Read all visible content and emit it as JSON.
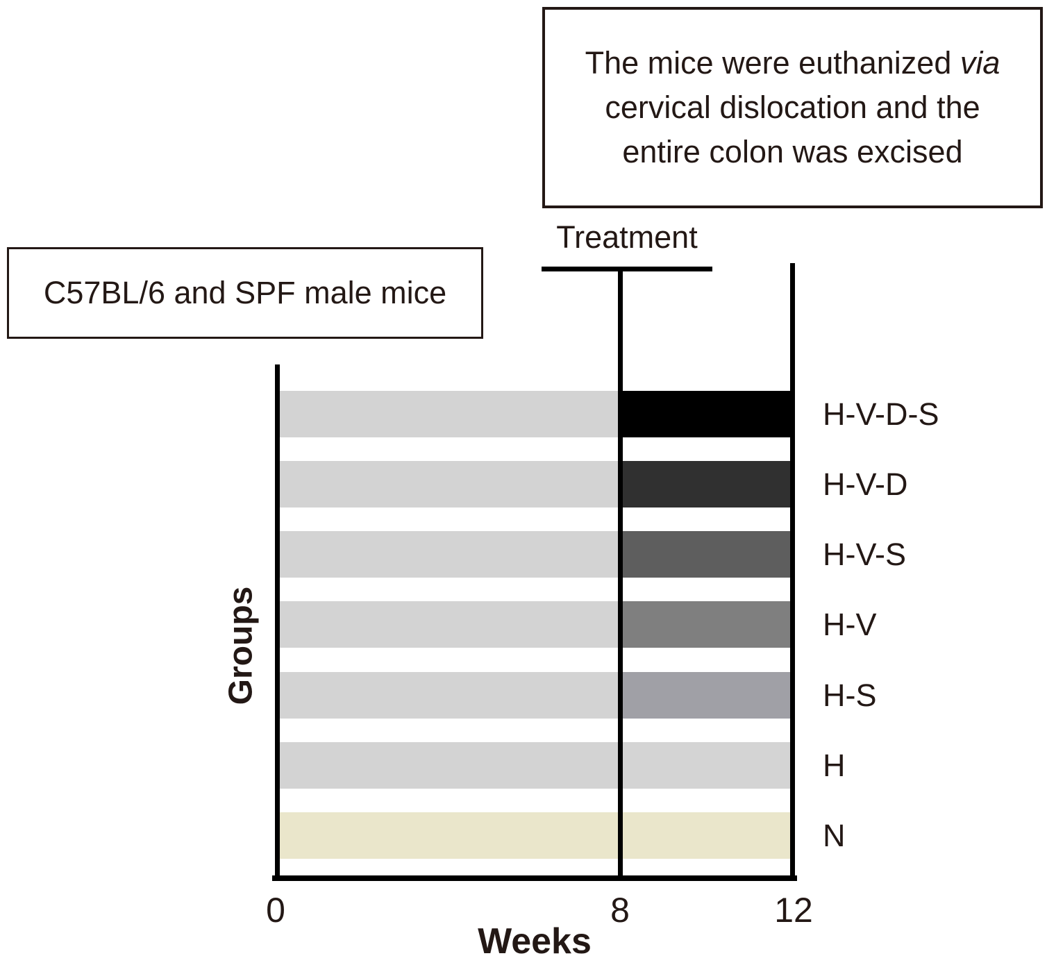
{
  "figure": {
    "notes": {
      "euthanasia": {
        "line1_regular": "The mice were euthanized ",
        "line1_italic": "via",
        "line2": "cervical dislocation and the",
        "line3": "entire colon was excised"
      },
      "subject": "C57BL/6 and SPF male mice"
    },
    "treatment_label": "Treatment",
    "axes": {
      "x_label": "Weeks",
      "y_label": "Groups",
      "x_ticks": [
        "0",
        "8",
        "12"
      ]
    },
    "groups": [
      {
        "label": "H-V-D-S",
        "pre_color": "#d3d3d3",
        "treatment_color": "#000000"
      },
      {
        "label": "H-V-D",
        "pre_color": "#d3d3d3",
        "treatment_color": "#303030"
      },
      {
        "label": "H-V-S",
        "pre_color": "#d3d3d3",
        "treatment_color": "#5e5e5e"
      },
      {
        "label": "H-V",
        "pre_color": "#d3d3d3",
        "treatment_color": "#7f7f7f"
      },
      {
        "label": "H-S",
        "pre_color": "#d3d3d3",
        "treatment_color": "#a0a0a6"
      },
      {
        "label": "H",
        "pre_color": "#d3d3d3",
        "treatment_color": "#d4d4d4"
      },
      {
        "label": "N",
        "pre_color": "#eae6cb",
        "treatment_color": "#eae6cb"
      }
    ],
    "timeline": {
      "start_week": 0,
      "treatment_start_week": 8,
      "end_week": 12
    },
    "colors": {
      "text": "#231815",
      "axis": "#000000",
      "pre_treatment_gray": "#d3d3d3",
      "control_cream": "#eae6cb"
    }
  }
}
